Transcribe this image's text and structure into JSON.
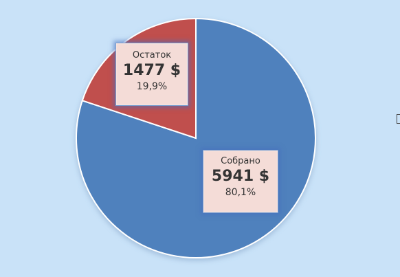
{
  "chart_data": {
    "type": "pie",
    "slices": [
      {
        "name": "Собрано",
        "value": 5941,
        "value_label": "5941 $",
        "percent": 80.1,
        "percent_label": "80,1%",
        "color": "#4f81bd"
      },
      {
        "name": "Остаток",
        "value": 1477,
        "value_label": "1477 $",
        "percent": 19.9,
        "percent_label": "19,9%",
        "color": "#c0504d"
      }
    ],
    "title": "",
    "legend": "none",
    "background": "#c9e2f8"
  }
}
